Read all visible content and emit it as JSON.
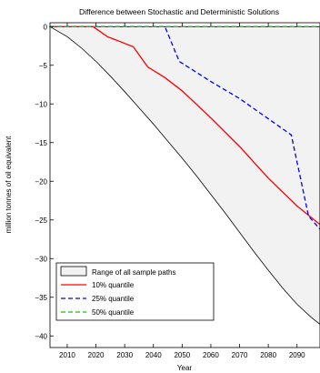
{
  "chart_data": {
    "type": "line",
    "title": "Difference between Stochastic and Deterministic Solutions",
    "xlabel": "Year",
    "ylabel": "million tonnes of oil equivalent",
    "xlim": [
      2004,
      2098
    ],
    "ylim": [
      -41.5,
      0.5
    ],
    "x_ticks": [
      2010,
      2020,
      2030,
      2040,
      2050,
      2060,
      2070,
      2080,
      2090
    ],
    "y_ticks": [
      0,
      -5,
      -10,
      -15,
      -20,
      -25,
      -30,
      -35,
      -40
    ],
    "grid": false,
    "legend_position": "bottom-left",
    "range_band": {
      "name": "Range of all sample paths",
      "fill": "#f2f2f2",
      "upper": [
        [
          2004,
          0
        ],
        [
          2098,
          0
        ]
      ],
      "lower": [
        [
          2004,
          0
        ],
        [
          2010,
          -1.3
        ],
        [
          2015,
          -2.8
        ],
        [
          2020,
          -4.5
        ],
        [
          2025,
          -6.4
        ],
        [
          2030,
          -8.4
        ],
        [
          2035,
          -10.5
        ],
        [
          2040,
          -12.6
        ],
        [
          2045,
          -14.8
        ],
        [
          2050,
          -17.0
        ],
        [
          2055,
          -19.3
        ],
        [
          2060,
          -21.7
        ],
        [
          2065,
          -24.1
        ],
        [
          2070,
          -26.6
        ],
        [
          2075,
          -29.1
        ],
        [
          2080,
          -31.5
        ],
        [
          2085,
          -33.8
        ],
        [
          2090,
          -35.9
        ],
        [
          2095,
          -37.6
        ],
        [
          2098,
          -38.5
        ]
      ]
    },
    "series": [
      {
        "name": "10% quantile",
        "color": "#ff0000",
        "dash": "solid",
        "points": [
          [
            2004,
            0
          ],
          [
            2019,
            0
          ],
          [
            2024,
            -1.3
          ],
          [
            2033,
            -2.6
          ],
          [
            2038,
            -5.2
          ],
          [
            2044,
            -6.6
          ],
          [
            2050,
            -8.3
          ],
          [
            2060,
            -11.8
          ],
          [
            2070,
            -15.5
          ],
          [
            2080,
            -19.6
          ],
          [
            2090,
            -23.2
          ],
          [
            2098,
            -25.6
          ]
        ]
      },
      {
        "name": "25% quantile",
        "color": "#0000ff",
        "dash": "dashed",
        "points": [
          [
            2004,
            0
          ],
          [
            2044,
            0
          ],
          [
            2049,
            -4.5
          ],
          [
            2060,
            -7.1
          ],
          [
            2070,
            -9.3
          ],
          [
            2088,
            -14.0
          ],
          [
            2094,
            -24.5
          ],
          [
            2098,
            -26.2
          ]
        ]
      },
      {
        "name": "50% quantile",
        "color": "#00cc00",
        "dash": "dashed",
        "points": [
          [
            2004,
            0
          ],
          [
            2098,
            0
          ]
        ]
      }
    ]
  }
}
